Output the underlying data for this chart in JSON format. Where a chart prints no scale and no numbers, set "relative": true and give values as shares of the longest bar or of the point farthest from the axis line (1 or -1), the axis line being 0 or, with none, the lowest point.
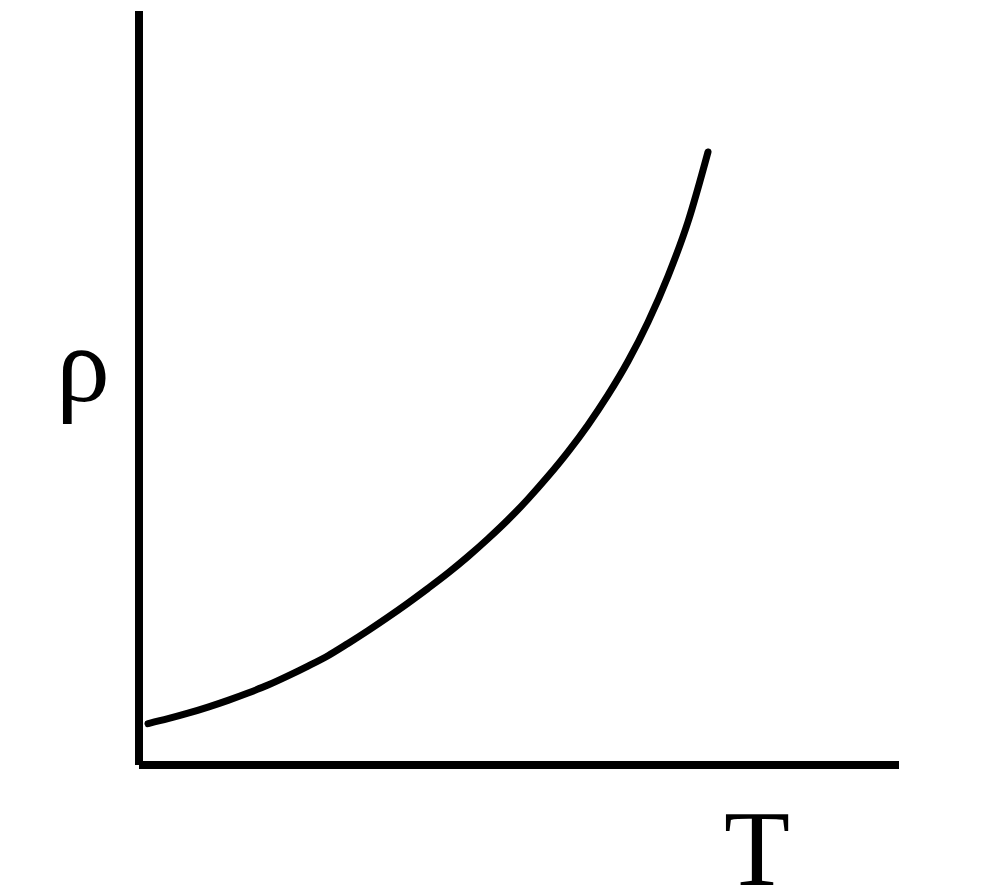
{
  "chart_data": {
    "type": "line",
    "relative": true,
    "line_style": "solid",
    "xlabel": "T",
    "ylabel": "ρ",
    "categories": [
      null,
      null,
      null,
      null,
      null,
      null,
      null,
      null,
      null,
      null,
      null,
      null,
      null,
      null,
      null,
      null,
      null,
      null,
      null,
      null,
      null,
      null,
      null,
      null,
      null,
      null,
      null,
      null,
      null,
      null,
      null,
      null,
      null,
      null,
      null,
      null,
      null,
      null
    ],
    "series": [
      {
        "color": "#000000",
        "values": [
          0.066,
          0.074,
          0.083,
          0.093,
          0.104,
          0.116,
          0.129,
          0.144,
          0.16,
          0.177,
          0.197,
          0.218,
          0.24,
          0.263,
          0.287,
          0.312,
          0.339,
          0.368,
          0.399,
          0.433,
          0.47,
          0.51,
          0.554,
          0.603,
          0.658,
          0.722,
          0.797,
          0.886,
          1.0,
          null,
          null,
          null,
          null,
          null,
          null,
          null,
          null,
          null
        ]
      }
    ]
  }
}
